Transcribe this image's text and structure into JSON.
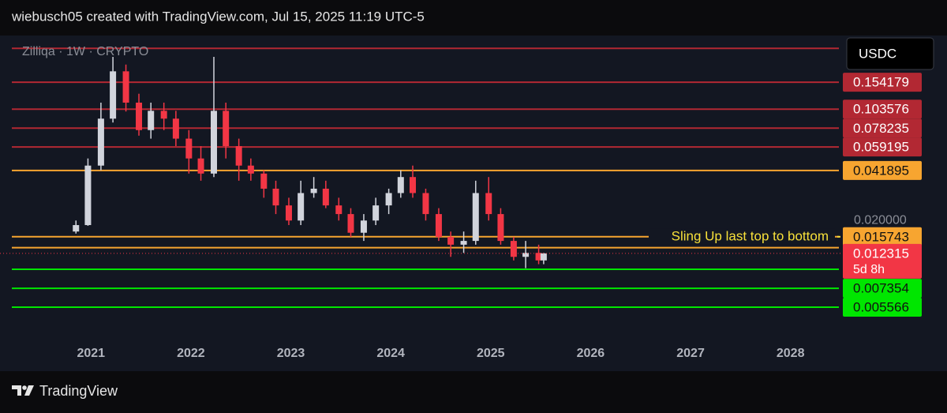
{
  "header": "wiebusch05 created with TradingView.com, Jul 15, 2025 11:19 UTC-5",
  "footer": "TradingView",
  "chart_data": {
    "type": "candlestick",
    "title": "Zilliqa · 1W · CRYPTO",
    "currency": "USDC",
    "x": [
      2020.85,
      2020.97,
      2021.1,
      2021.22,
      2021.35,
      2021.48,
      2021.6,
      2021.73,
      2021.85,
      2021.98,
      2022.1,
      2022.23,
      2022.35,
      2022.48,
      2022.6,
      2022.73,
      2022.85,
      2022.98,
      2023.1,
      2023.23,
      2023.35,
      2023.48,
      2023.6,
      2023.73,
      2023.85,
      2023.98,
      2024.1,
      2024.22,
      2024.35,
      2024.48,
      2024.6,
      2024.73,
      2024.85,
      2024.98,
      2025.1,
      2025.23,
      2025.35,
      2025.48,
      2025.53
    ],
    "open": [
      0.017,
      0.0187,
      0.045,
      0.09,
      0.181,
      0.114,
      0.076,
      0.101,
      0.09,
      0.067,
      0.05,
      0.04,
      0.101,
      0.06,
      0.045,
      0.04,
      0.032,
      0.025,
      0.02,
      0.03,
      0.032,
      0.025,
      0.022,
      0.0167,
      0.02,
      0.025,
      0.03,
      0.038,
      0.03,
      0.022,
      0.0157,
      0.014,
      0.0148,
      0.03,
      0.022,
      0.0148,
      0.0117,
      0.0124,
      0.0111
    ],
    "high": [
      0.02,
      0.05,
      0.114,
      0.224,
      0.2,
      0.13,
      0.114,
      0.114,
      0.101,
      0.076,
      0.06,
      0.224,
      0.114,
      0.067,
      0.05,
      0.042,
      0.036,
      0.028,
      0.036,
      0.038,
      0.036,
      0.028,
      0.024,
      0.022,
      0.028,
      0.032,
      0.042,
      0.045,
      0.032,
      0.024,
      0.017,
      0.017,
      0.036,
      0.038,
      0.024,
      0.0157,
      0.0148,
      0.014,
      0.0124
    ],
    "low": [
      0.0165,
      0.0185,
      0.042,
      0.085,
      0.1,
      0.07,
      0.067,
      0.076,
      0.06,
      0.04,
      0.036,
      0.038,
      0.05,
      0.036,
      0.036,
      0.028,
      0.022,
      0.0187,
      0.0187,
      0.028,
      0.024,
      0.02,
      0.0157,
      0.0148,
      0.0187,
      0.022,
      0.028,
      0.028,
      0.02,
      0.0148,
      0.0117,
      0.0124,
      0.014,
      0.02,
      0.014,
      0.0111,
      0.0099,
      0.0105,
      0.0105
    ],
    "close": [
      0.0187,
      0.045,
      0.09,
      0.181,
      0.114,
      0.076,
      0.101,
      0.09,
      0.067,
      0.05,
      0.04,
      0.101,
      0.06,
      0.045,
      0.04,
      0.032,
      0.025,
      0.02,
      0.03,
      0.032,
      0.025,
      0.022,
      0.0167,
      0.02,
      0.025,
      0.03,
      0.038,
      0.03,
      0.022,
      0.0157,
      0.014,
      0.0148,
      0.03,
      0.022,
      0.0148,
      0.0117,
      0.0124,
      0.0111,
      0.012315
    ],
    "up_color": "#d1d4dc",
    "down_color": "#f23645",
    "log_scale": true,
    "xlim": [
      2020.09,
      2028.5
    ],
    "xticks": [
      2021,
      2022,
      2023,
      2024,
      2025,
      2026,
      2027,
      2028
    ],
    "ylim": [
      0.00345,
      0.307
    ],
    "yticks": [
      {
        "value": 0.02,
        "label": "0.020000"
      }
    ],
    "levels": [
      {
        "value": 0.254,
        "color": "#b22833",
        "show_label": false
      },
      {
        "value": 0.154179,
        "color": "#b22833",
        "show_label": true
      },
      {
        "value": 0.103576,
        "color": "#b22833",
        "show_label": true
      },
      {
        "value": 0.078235,
        "color": "#b22833",
        "show_label": true
      },
      {
        "value": 0.059195,
        "color": "#b22833",
        "show_label": true
      },
      {
        "value": 0.041895,
        "color": "#f7a530",
        "show_label": true
      },
      {
        "value": 0.015743,
        "color": "#f7a530",
        "show_label": true
      },
      {
        "value": 0.0134,
        "color": "#f7a530",
        "show_label": false
      },
      {
        "value": 0.00974,
        "color": "#00e600",
        "show_label": false
      },
      {
        "value": 0.007354,
        "color": "#00e600",
        "show_label": true
      },
      {
        "value": 0.005566,
        "color": "#00e600",
        "show_label": true
      }
    ],
    "annotation": {
      "text": "Sling Up last top to bottom",
      "value": 0.015743,
      "color": "#f7e03a"
    },
    "last_price": {
      "value": 0.012315,
      "countdown": "5d 8h",
      "color": "#f23645"
    }
  }
}
